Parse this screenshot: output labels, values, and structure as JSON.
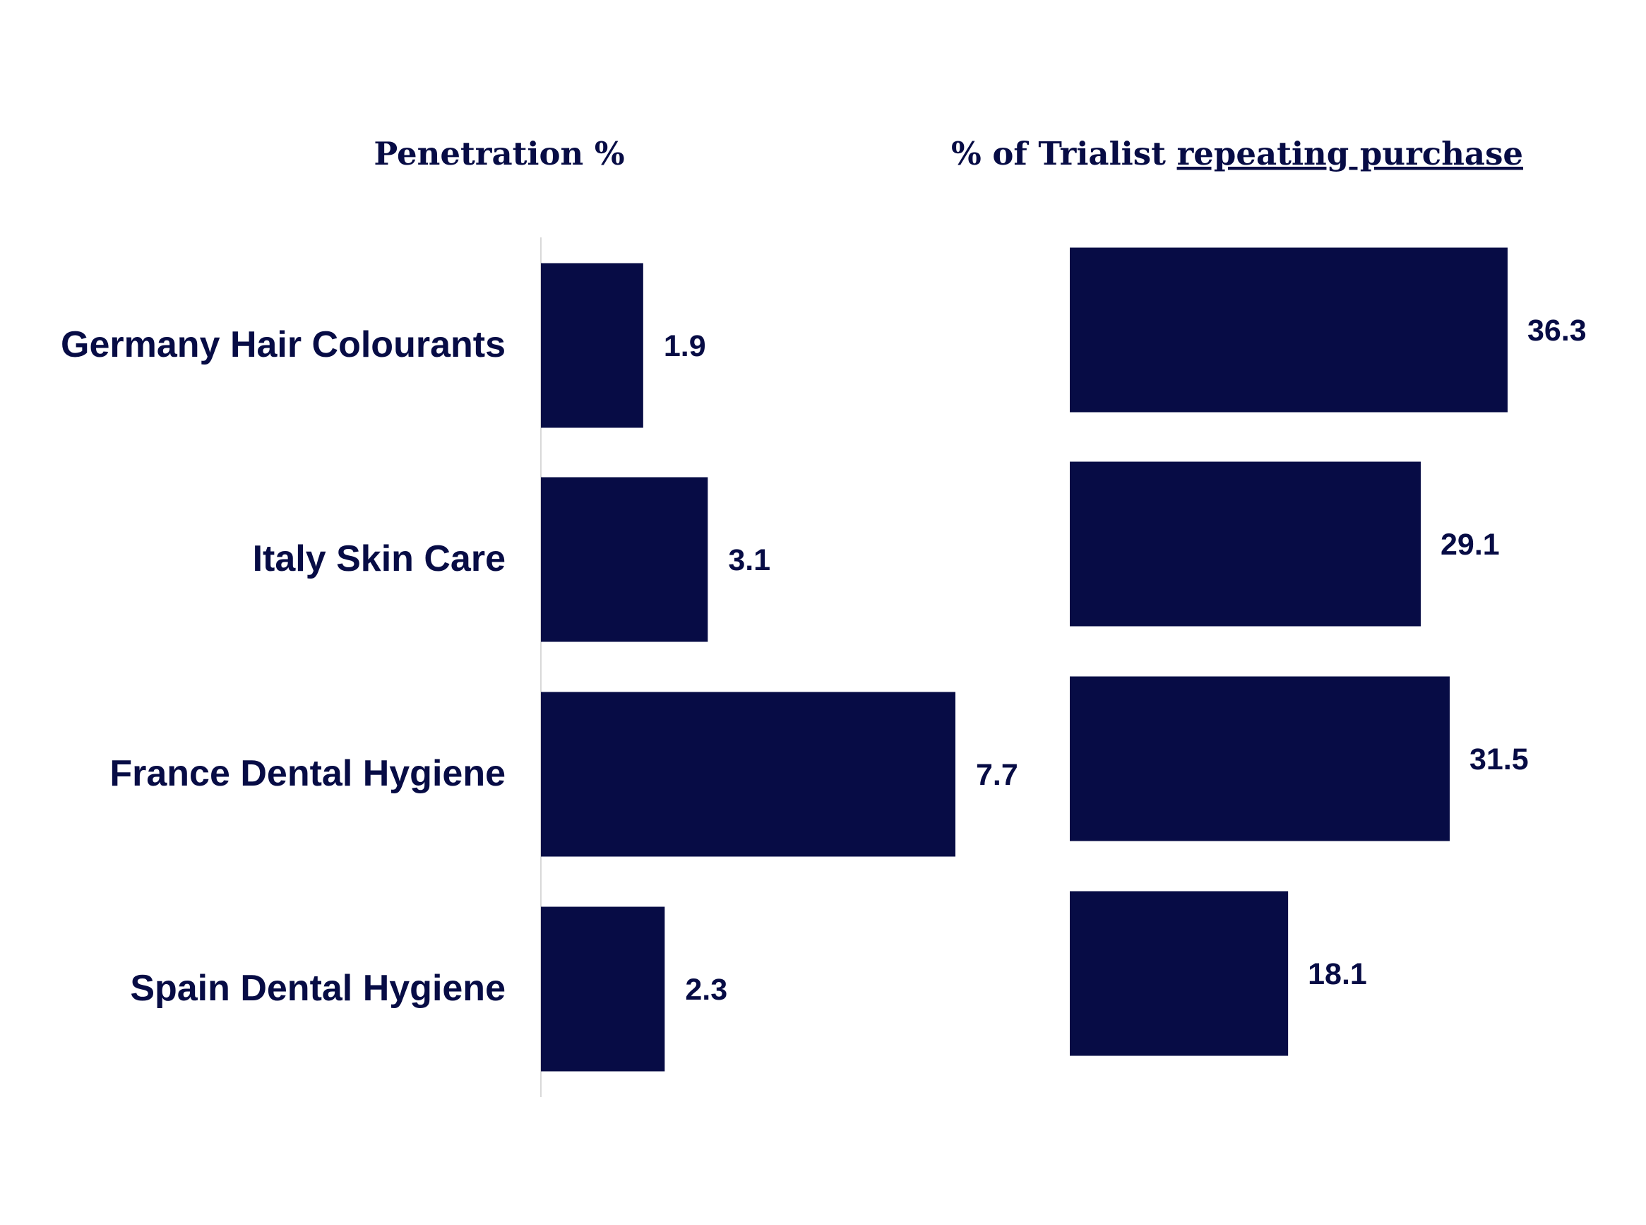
{
  "colors": {
    "bar": "#070c45",
    "text": "#070c45",
    "axis": "#d9d9d9",
    "background": "#ffffff"
  },
  "chart_data": [
    {
      "type": "bar",
      "orientation": "horizontal",
      "title": "Penetration %",
      "categories": [
        "Germany Hair Colourants",
        "Italy Skin Care",
        "France Dental Hygiene",
        "Spain Dental Hygiene"
      ],
      "values": [
        1.9,
        3.1,
        7.7,
        2.3
      ],
      "xlim": [
        0,
        10
      ],
      "data_labels": [
        "1.9",
        "3.1",
        "7.7",
        "2.3"
      ],
      "grid": false
    },
    {
      "type": "bar",
      "orientation": "horizontal",
      "title_parts": [
        {
          "text": "% of Trialist ",
          "underline": false
        },
        {
          "text": "repeating purchase",
          "underline": true
        }
      ],
      "categories": [
        "Germany Hair Colourants",
        "Italy Skin Care",
        "France Dental Hygiene",
        "Spain Dental Hygiene"
      ],
      "values": [
        36.3,
        29.1,
        31.5,
        18.1
      ],
      "xlim": [
        0,
        45
      ],
      "data_labels": [
        "36.3",
        "29.1",
        "31.5",
        "18.1"
      ],
      "grid": false
    }
  ]
}
